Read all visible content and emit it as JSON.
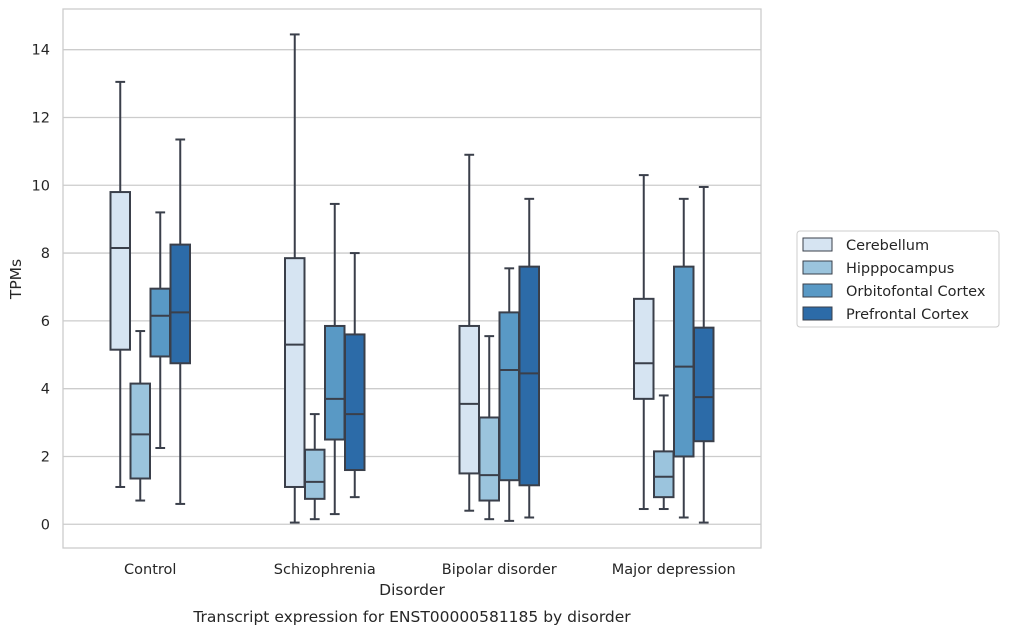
{
  "caption": "Transcript expression for ENST00000581185 by disorder",
  "chart_data": {
    "type": "box",
    "xlabel": "Disorder",
    "ylabel": "TPMs",
    "ylim": [
      -0.7,
      15.2
    ],
    "yticks": [
      0,
      2,
      4,
      6,
      8,
      10,
      12,
      14
    ],
    "grid": "horizontal",
    "legend_position": "right",
    "categories": [
      "Control",
      "Schizophrenia",
      "Bipolar disorder",
      "Major depression"
    ],
    "series": [
      {
        "name": "Cerebellum",
        "color": "#d6e4f2",
        "boxes": [
          {
            "whislo": 1.1,
            "q1": 5.15,
            "med": 8.15,
            "q3": 9.8,
            "whishi": 13.05
          },
          {
            "whislo": 0.05,
            "q1": 1.1,
            "med": 5.3,
            "q3": 7.85,
            "whishi": 14.45
          },
          {
            "whislo": 0.4,
            "q1": 1.5,
            "med": 3.55,
            "q3": 5.85,
            "whishi": 10.9
          },
          {
            "whislo": 0.45,
            "q1": 3.7,
            "med": 4.75,
            "q3": 6.65,
            "whishi": 10.3
          }
        ]
      },
      {
        "name": "Hipppocampus",
        "color": "#9bc4dd",
        "boxes": [
          {
            "whislo": 0.7,
            "q1": 1.35,
            "med": 2.65,
            "q3": 4.15,
            "whishi": 5.7
          },
          {
            "whislo": 0.15,
            "q1": 0.75,
            "med": 1.25,
            "q3": 2.2,
            "whishi": 3.25
          },
          {
            "whislo": 0.15,
            "q1": 0.7,
            "med": 1.45,
            "q3": 3.15,
            "whishi": 5.55
          },
          {
            "whislo": 0.45,
            "q1": 0.8,
            "med": 1.4,
            "q3": 2.15,
            "whishi": 3.8
          }
        ]
      },
      {
        "name": "Orbitofontal Cortex",
        "color": "#5999c5",
        "boxes": [
          {
            "whislo": 2.25,
            "q1": 4.95,
            "med": 6.15,
            "q3": 6.95,
            "whishi": 9.2
          },
          {
            "whislo": 0.3,
            "q1": 2.5,
            "med": 3.7,
            "q3": 5.85,
            "whishi": 9.45
          },
          {
            "whislo": 0.1,
            "q1": 1.3,
            "med": 4.55,
            "q3": 6.25,
            "whishi": 7.55
          },
          {
            "whislo": 0.2,
            "q1": 2.0,
            "med": 4.65,
            "q3": 7.6,
            "whishi": 9.6
          }
        ]
      },
      {
        "name": "Prefrontal Cortex",
        "color": "#2c6ba8",
        "boxes": [
          {
            "whislo": 0.6,
            "q1": 4.75,
            "med": 6.25,
            "q3": 8.25,
            "whishi": 11.35
          },
          {
            "whislo": 0.8,
            "q1": 1.6,
            "med": 3.25,
            "q3": 5.6,
            "whishi": 8.0
          },
          {
            "whislo": 0.2,
            "q1": 1.15,
            "med": 4.45,
            "q3": 7.6,
            "whishi": 9.6
          },
          {
            "whislo": 0.05,
            "q1": 2.45,
            "med": 3.75,
            "q3": 5.8,
            "whishi": 9.95
          }
        ]
      }
    ]
  }
}
